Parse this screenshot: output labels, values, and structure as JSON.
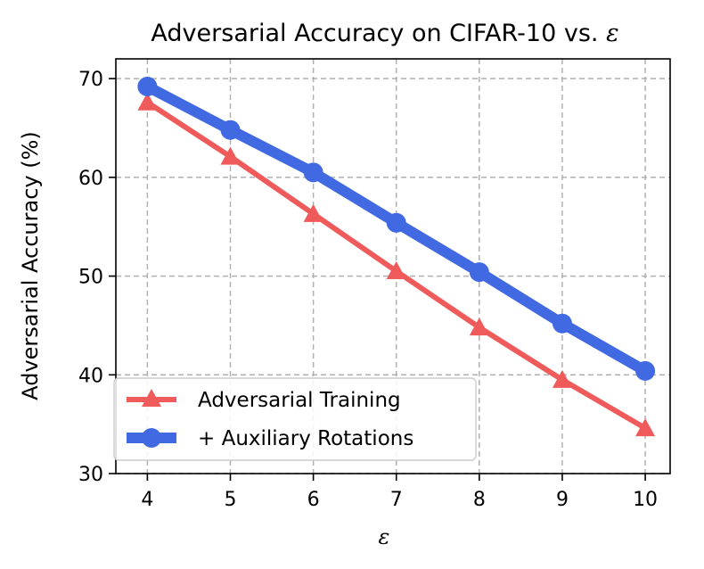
{
  "chart_data": {
    "type": "line",
    "title": "Adversarial Accuracy on CIFAR-10 vs. ",
    "title_symbol": "ε",
    "xlabel": "ε",
    "ylabel": "Adversarial Accuracy (%)",
    "x": [
      4,
      5,
      6,
      7,
      8,
      9,
      10
    ],
    "xticks": [
      "4",
      "5",
      "6",
      "7",
      "8",
      "9",
      "10"
    ],
    "yticks": [
      "30",
      "40",
      "50",
      "60",
      "70"
    ],
    "xlim": [
      3.62,
      10.3
    ],
    "ylim": [
      30,
      72
    ],
    "grid": true,
    "legend_position": "lower-left",
    "series": [
      {
        "name": "Adversarial Training",
        "values": [
          67.6,
          62.1,
          56.3,
          50.5,
          44.8,
          39.5,
          34.6
        ],
        "color": "#ef5a5a",
        "marker": "triangle"
      },
      {
        "name": "+ Auxiliary Rotations",
        "values": [
          69.2,
          64.8,
          60.5,
          55.4,
          50.4,
          45.2,
          40.4
        ],
        "color": "#4169e1",
        "marker": "circle"
      }
    ]
  }
}
